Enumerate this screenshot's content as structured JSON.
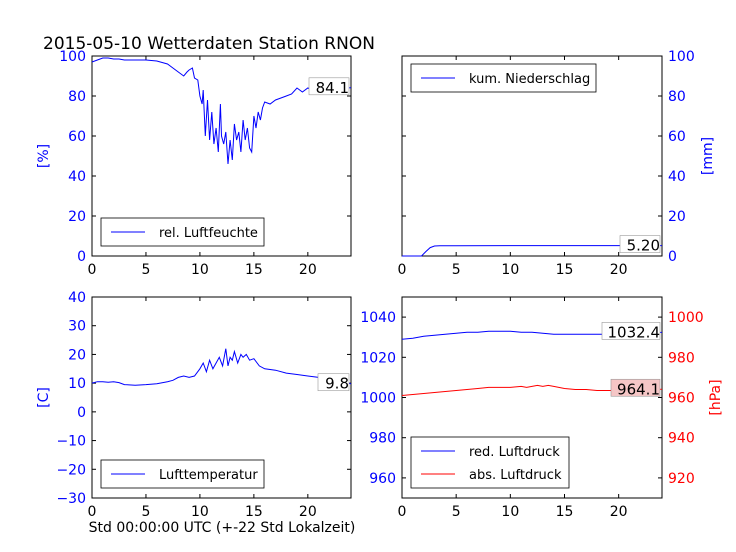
{
  "title": "2015-05-10 Wetterdaten Station RNON",
  "xlabel": "Std 00:00:00 UTC (+-22 Std Lokalzeit)",
  "colors": {
    "blue": "#0000ff",
    "red": "#ff0000",
    "black": "#000000",
    "red_box_fill": "#f5c6c6"
  },
  "chart_data": [
    {
      "id": "humidity",
      "type": "line",
      "ylabel": "[%]",
      "ylabel_color": "#0000ff",
      "xlim": [
        0,
        24
      ],
      "ylim": [
        0,
        100
      ],
      "xticks": [
        "0",
        "5",
        "10",
        "15",
        "20"
      ],
      "yticks": [
        "0",
        "20",
        "40",
        "60",
        "80",
        "100"
      ],
      "legend": {
        "placement": "lower-left",
        "entries": [
          "rel. Luftfeuchte"
        ]
      },
      "current_value": "84.1",
      "series": [
        {
          "name": "rel. Luftfeuchte",
          "color": "#0000ff",
          "x": [
            0,
            0.5,
            1,
            1.5,
            2,
            2.5,
            3,
            4,
            5,
            6,
            7,
            7.5,
            8,
            8.5,
            8.8,
            9,
            9.3,
            9.5,
            9.8,
            10,
            10.2,
            10.3,
            10.5,
            10.7,
            10.9,
            11.1,
            11.3,
            11.5,
            11.7,
            11.9,
            12,
            12.2,
            12.4,
            12.6,
            12.8,
            13,
            13.2,
            13.4,
            13.6,
            13.8,
            14,
            14.2,
            14.4,
            14.6,
            14.8,
            15,
            15.2,
            15.4,
            15.6,
            15.8,
            16,
            16.5,
            17,
            17.5,
            18,
            18.5,
            19,
            19.5,
            20,
            20.5,
            21,
            21.5,
            22,
            22.5,
            23,
            23.5,
            24
          ],
          "y": [
            97,
            98,
            99,
            99,
            98.5,
            98.5,
            98,
            98,
            98,
            97.5,
            96,
            94,
            92,
            90,
            92,
            93,
            94,
            89,
            88,
            80,
            76,
            83,
            60,
            78,
            58,
            72,
            56,
            64,
            52,
            76,
            60,
            56,
            62,
            46,
            58,
            48,
            66,
            58,
            62,
            52,
            68,
            58,
            64,
            54,
            52,
            70,
            64,
            72,
            68,
            74,
            77,
            76,
            78,
            79,
            80,
            81,
            84,
            82,
            84,
            83,
            85,
            84,
            86,
            83,
            85,
            84,
            84.1
          ]
        }
      ]
    },
    {
      "id": "precipitation",
      "type": "line",
      "ylabel": "[mm]",
      "ylabel_color": "#0000ff",
      "xlim": [
        0,
        24
      ],
      "ylim": [
        0,
        100
      ],
      "xticks": [
        "0",
        "5",
        "10",
        "15",
        "20"
      ],
      "yticks": [
        "0",
        "20",
        "40",
        "60",
        "80",
        "100"
      ],
      "legend": {
        "placement": "upper-left",
        "entries": [
          "kum. Niederschlag"
        ]
      },
      "current_value": "5.20",
      "series": [
        {
          "name": "kum. Niederschlag",
          "color": "#0000ff",
          "x": [
            0,
            1.8,
            2.2,
            2.6,
            3,
            3.5,
            5,
            10,
            15,
            20,
            24
          ],
          "y": [
            0,
            0,
            2.2,
            4.2,
            5.0,
            5.1,
            5.1,
            5.2,
            5.2,
            5.2,
            5.2
          ]
        }
      ]
    },
    {
      "id": "temperature",
      "type": "line",
      "ylabel": "[C]",
      "ylabel_color": "#0000ff",
      "xlim": [
        0,
        24
      ],
      "ylim": [
        -30,
        40
      ],
      "xticks": [
        "0",
        "5",
        "10",
        "15",
        "20"
      ],
      "yticks": [
        "−30",
        "−20",
        "−10",
        "0",
        "10",
        "20",
        "30",
        "40"
      ],
      "legend": {
        "placement": "lower-left",
        "entries": [
          "Lufttemperatur"
        ]
      },
      "current_value": "9.8",
      "series": [
        {
          "name": "Lufttemperatur",
          "color": "#0000ff",
          "x": [
            0,
            0.5,
            1,
            1.5,
            2,
            2.5,
            3,
            4,
            5,
            6,
            7,
            7.5,
            8,
            8.5,
            9,
            9.5,
            10,
            10.3,
            10.6,
            10.9,
            11.2,
            11.5,
            11.8,
            12.1,
            12.4,
            12.6,
            12.8,
            13,
            13.2,
            13.5,
            13.8,
            14,
            14.3,
            14.6,
            15,
            15.5,
            16,
            17,
            18,
            19,
            20,
            21,
            22,
            23,
            24
          ],
          "y": [
            10,
            10.5,
            10.5,
            10.3,
            10.5,
            10.2,
            9.5,
            9.3,
            9.5,
            9.8,
            10.5,
            11,
            12,
            12.5,
            12,
            12.5,
            15,
            17,
            14,
            18,
            15,
            17,
            19,
            16,
            22,
            16,
            19,
            18,
            21,
            17,
            20,
            19,
            20,
            18,
            18.5,
            16,
            15,
            14.5,
            13.5,
            13,
            12.5,
            12,
            11,
            10.3,
            9.8
          ]
        }
      ]
    },
    {
      "id": "pressure",
      "type": "line",
      "ylabel": "[hPa]",
      "ylabel_color": "#ff0000",
      "xlim": [
        0,
        24
      ],
      "ylim": [
        950,
        1050
      ],
      "ylim_right": [
        910,
        1010
      ],
      "xticks": [
        "0",
        "5",
        "10",
        "15",
        "20"
      ],
      "yticks": [
        "960",
        "980",
        "1000",
        "1020",
        "1040"
      ],
      "yticks_right": [
        "920",
        "940",
        "960",
        "980",
        "1000"
      ],
      "legend": {
        "placement": "lower-left",
        "entries": [
          "red. Luftdruck",
          "abs. Luftdruck"
        ]
      },
      "current_values": [
        "1032.4",
        "964.1"
      ],
      "series": [
        {
          "name": "red. Luftdruck",
          "color": "#0000ff",
          "axis": "left",
          "x": [
            0,
            1,
            2,
            3,
            4,
            5,
            6,
            7,
            8,
            9,
            10,
            11,
            12,
            13,
            14,
            15,
            16,
            17,
            18,
            19,
            20,
            21,
            22,
            23,
            24
          ],
          "y": [
            1029,
            1029.5,
            1030.5,
            1031,
            1031.5,
            1032,
            1032.5,
            1032.5,
            1033,
            1033,
            1033,
            1032.5,
            1032.5,
            1032,
            1031.5,
            1031.5,
            1031.5,
            1031.5,
            1031.5,
            1031.5,
            1031.5,
            1032,
            1032,
            1032.4,
            1032.4
          ]
        },
        {
          "name": "abs. Luftdruck",
          "color": "#ff0000",
          "axis": "right",
          "x": [
            0,
            1,
            2,
            3,
            4,
            5,
            6,
            7,
            8,
            9,
            10,
            11,
            11.5,
            12,
            12.5,
            13,
            13.5,
            14,
            15,
            16,
            17,
            18,
            19,
            20,
            21,
            22,
            23,
            24
          ],
          "y": [
            961,
            961.5,
            962,
            962.5,
            963,
            963.5,
            964,
            964.5,
            965,
            965,
            965,
            965.5,
            965,
            965.5,
            966,
            965.5,
            966,
            965.5,
            964.5,
            964,
            964,
            963.5,
            963.5,
            963.5,
            963.5,
            963.5,
            964,
            964.1
          ]
        }
      ]
    }
  ]
}
